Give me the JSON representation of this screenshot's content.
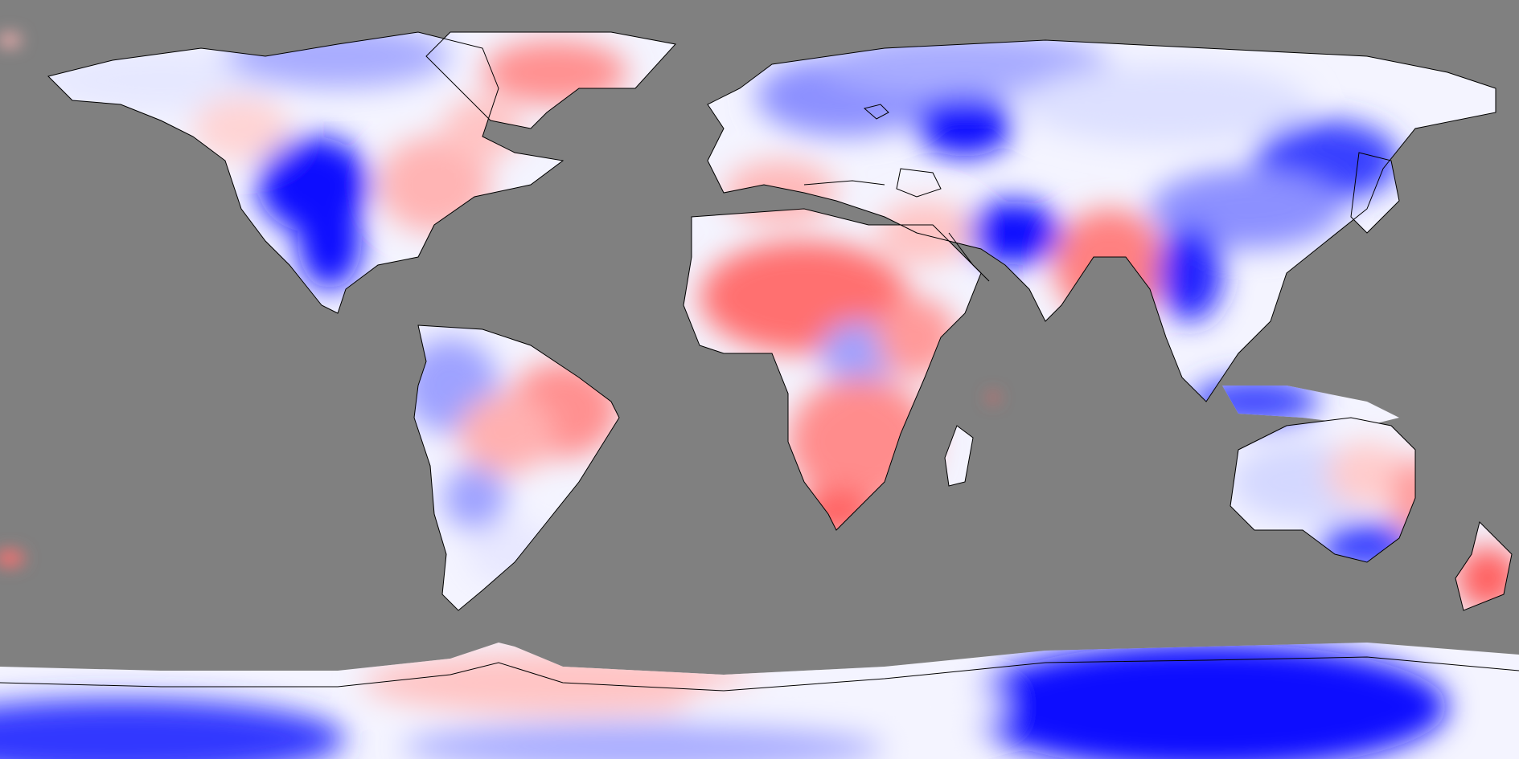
{
  "map": {
    "projection": "equirectangular",
    "extent": {
      "lon": [
        -180,
        180
      ],
      "lat": [
        -90,
        90
      ]
    },
    "colors": {
      "ocean_nodata": "#808080",
      "warm_strong": "#ff4040",
      "warm_mid": "#ff8080",
      "warm_weak": "#ffc8c8",
      "neutral": "#f6f6ff",
      "cool_weak": "#d4d8ff",
      "cool_mid": "#8c90ff",
      "cool_strong": "#0a0aff",
      "coastline": "#000000"
    },
    "legend": null,
    "title": ""
  }
}
